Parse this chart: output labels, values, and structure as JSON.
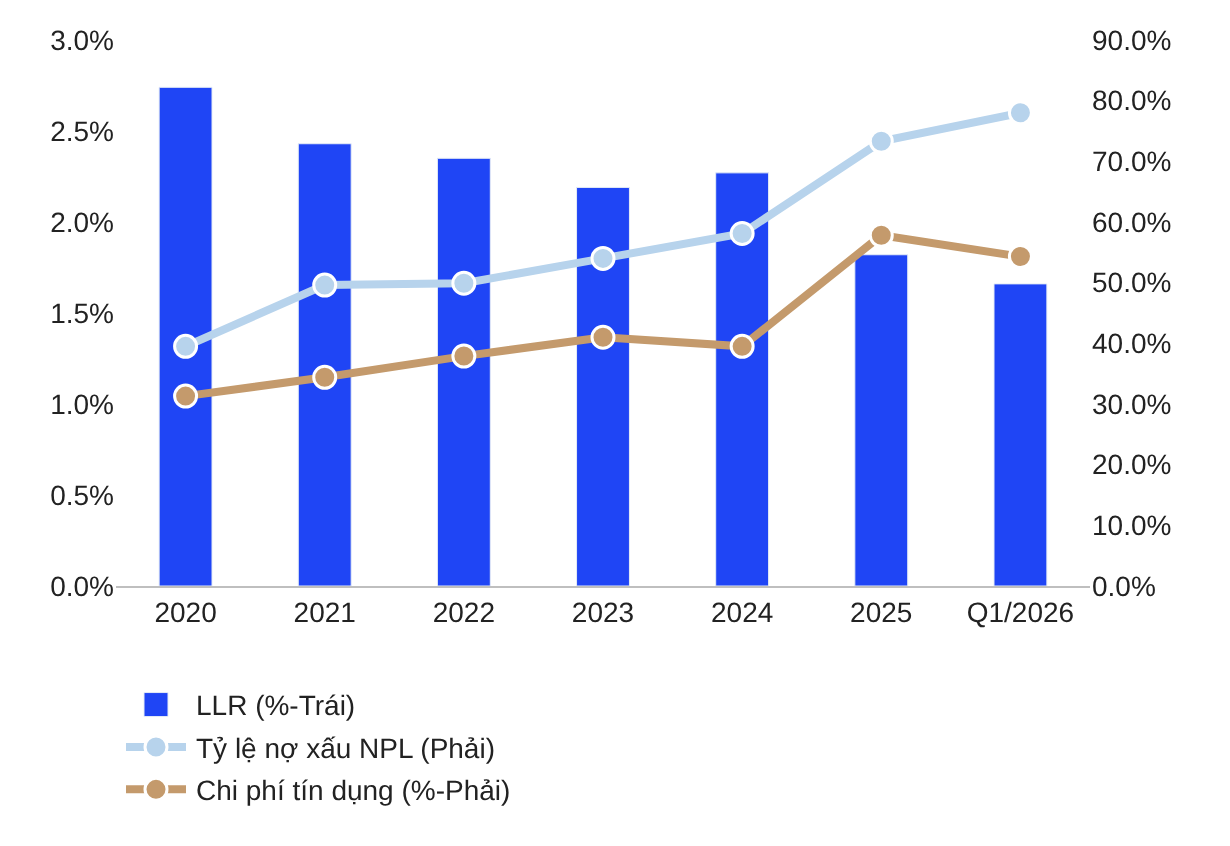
{
  "chart_data": {
    "type": "bar",
    "categories": [
      "2020",
      "2021",
      "2022",
      "2023",
      "2024",
      "2025",
      "Q1/2026"
    ],
    "series": [
      {
        "name": "LLR (%-Trái)",
        "color": "#1f45f5",
        "values": [
          2.74,
          2.43,
          2.35,
          2.19,
          2.27,
          1.82,
          1.66
        ]
      },
      {
        "name": "Tỷ lệ nợ xấu NPL (Phải)",
        "type": "line",
        "axis": "y2",
        "color": "#b7d3ec",
        "values": [
          39.5,
          49.6,
          49.9,
          54.0,
          58.1,
          73.3,
          78.0
        ]
      },
      {
        "name": "Chi phí tín dụng (%-Phải)",
        "type": "line",
        "axis": "y2",
        "color": "#c49a6c",
        "values": [
          31.3,
          34.4,
          37.9,
          41.0,
          39.5,
          57.8,
          54.3
        ]
      }
    ],
    "ylim": [
      0,
      3
    ],
    "yticks": [
      {
        "value": 0,
        "label": "0.0%"
      },
      {
        "value": 0.5,
        "label": "0.5%"
      },
      {
        "value": 1,
        "label": "1.0%"
      },
      {
        "value": 1.5,
        "label": "1.5%"
      },
      {
        "value": 2,
        "label": "2.0%"
      },
      {
        "value": 2.5,
        "label": "2.5%"
      },
      {
        "value": 3,
        "label": "3.0%"
      }
    ],
    "y2lim": [
      0,
      90
    ],
    "y2ticks": [
      {
        "value": 0,
        "label": "0.0%"
      },
      {
        "value": 10,
        "label": "10.0%"
      },
      {
        "value": 20,
        "label": "20.0%"
      },
      {
        "value": 30,
        "label": "30.0%"
      },
      {
        "value": 40,
        "label": "40.0%"
      },
      {
        "value": 50,
        "label": "50.0%"
      },
      {
        "value": 60,
        "label": "60.0%"
      },
      {
        "value": 70,
        "label": "70.0%"
      },
      {
        "value": 80,
        "label": "80.0%"
      },
      {
        "value": 90,
        "label": "90.0%"
      }
    ],
    "marker": "circle",
    "legend": "bottom"
  }
}
